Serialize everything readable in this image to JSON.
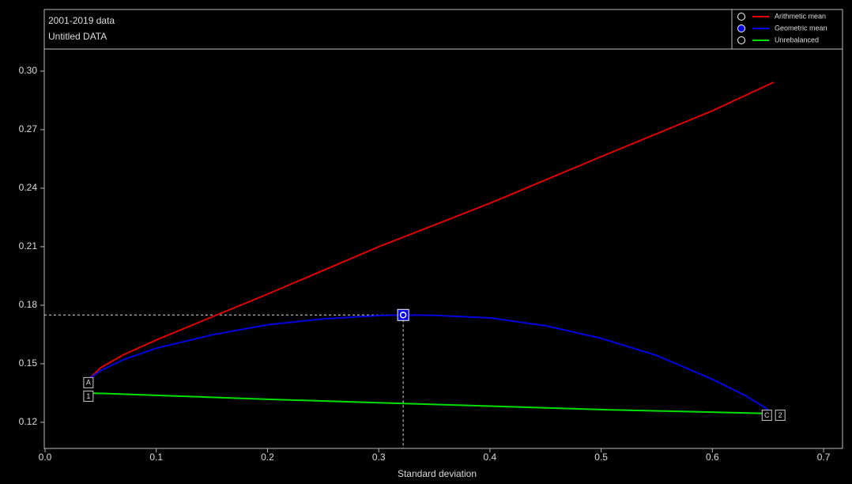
{
  "chart_data": {
    "type": "line",
    "title": "2001-2019 data",
    "subtitle": "Untitled DATA",
    "x_label": "Standard deviation",
    "xlim": [
      -0.0007,
      0.717
    ],
    "ylim": [
      0.1066,
      0.3316
    ],
    "xticks": [
      {
        "value": 0,
        "label": "0.0"
      },
      0.1,
      0.2,
      0.3,
      0.4,
      0.5,
      0.6,
      0.7
    ],
    "yticks": [
      0.12,
      0.15,
      0.18,
      0.21,
      0.24,
      0.27,
      {
        "value": 0.3,
        "label": "0.30"
      }
    ],
    "grid": false,
    "legend": "top-right",
    "series": [
      {
        "name": "Arithmetic mean",
        "color": "#e00000",
        "x": [
          0.04,
          0.05,
          0.07,
          0.1,
          0.15,
          0.2,
          0.3,
          0.4,
          0.5,
          0.6,
          0.655
        ],
        "y": [
          0.1425,
          0.148,
          0.1545,
          0.1622,
          0.174,
          0.1857,
          0.21,
          0.2323,
          0.2562,
          0.2797,
          0.2943
        ]
      },
      {
        "name": "Geometric mean",
        "color": "#0000e0",
        "x": [
          0.04,
          0.05,
          0.07,
          0.1,
          0.15,
          0.2,
          0.25,
          0.3,
          0.322,
          0.35,
          0.4,
          0.45,
          0.5,
          0.55,
          0.6,
          0.63,
          0.65
        ],
        "y": [
          0.1425,
          0.1465,
          0.152,
          0.158,
          0.1648,
          0.17,
          0.173,
          0.1747,
          0.175,
          0.1748,
          0.1735,
          0.1695,
          0.163,
          0.1542,
          0.142,
          0.1335,
          0.1265
        ]
      },
      {
        "name": "Unrebalanced",
        "color": "#00e000",
        "x": [
          0.04,
          0.1,
          0.2,
          0.3,
          0.4,
          0.5,
          0.6,
          0.65
        ],
        "y": [
          0.135,
          0.1338,
          0.1318,
          0.13,
          0.1283,
          0.1265,
          0.1252,
          0.1245
        ]
      }
    ],
    "highlight": {
      "x": 0.322,
      "y": 0.175
    },
    "annotations": [
      {
        "text": "A",
        "x": 0.039,
        "y": 0.1403
      },
      {
        "text": "1",
        "x": 0.039,
        "y": 0.1334
      },
      {
        "text": "C",
        "x": 0.649,
        "y": 0.1236
      },
      {
        "text": "2",
        "x": 0.661,
        "y": 0.1236
      }
    ]
  }
}
